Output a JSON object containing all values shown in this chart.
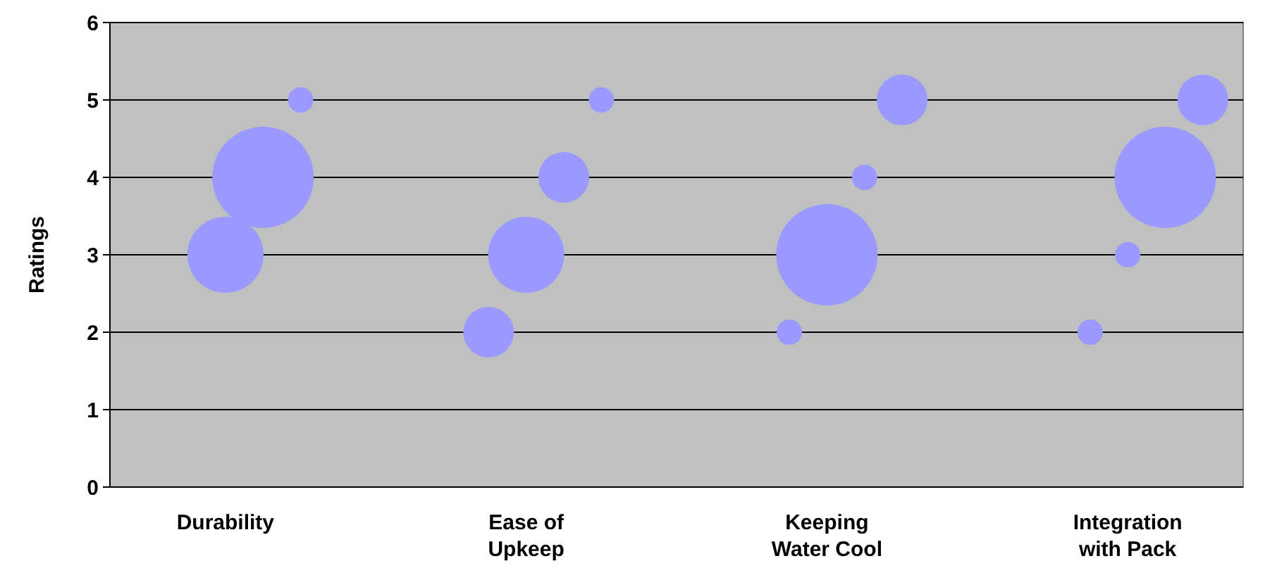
{
  "chart_data": {
    "type": "bubble",
    "ylabel": "Ratings",
    "categories": [
      "Durability",
      "Ease of\nUpkeep",
      "Keeping\nWater Cool",
      "Integration\nwith Pack"
    ],
    "ylim": [
      0,
      6
    ],
    "yticks": [
      0,
      1,
      2,
      3,
      4,
      5,
      6
    ],
    "grid": "y",
    "series": [
      {
        "color": "#9999ff",
        "values": [
          null,
          2,
          2,
          2
        ],
        "sizes": [
          null,
          0.25,
          0.0625,
          0.0625
        ]
      },
      {
        "color": "#9999ff",
        "values": [
          3,
          3,
          3,
          3
        ],
        "sizes": [
          0.5625,
          0.5625,
          1,
          0.0625
        ]
      },
      {
        "color": "#9999ff",
        "values": [
          4,
          4,
          4,
          4
        ],
        "sizes": [
          1,
          0.25,
          0.0625,
          1
        ]
      },
      {
        "color": "#9999ff",
        "values": [
          5,
          5,
          5,
          5
        ],
        "sizes": [
          0.0625,
          0.0625,
          0.25,
          0.25
        ]
      }
    ]
  }
}
